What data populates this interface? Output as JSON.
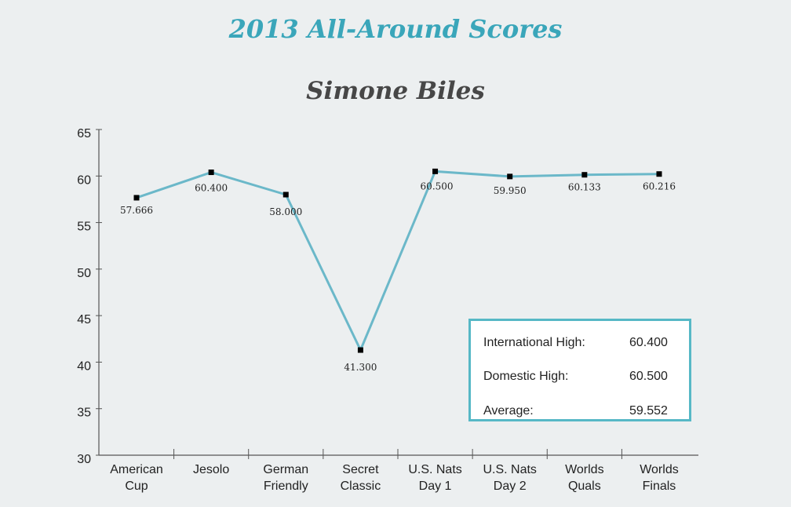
{
  "title": "2013 All-Around Scores",
  "subtitle": "Simone Biles",
  "chart_data": {
    "type": "line",
    "categories": [
      [
        "American",
        "Cup"
      ],
      [
        "Jesolo"
      ],
      [
        "German",
        "Friendly"
      ],
      [
        "Secret",
        "Classic"
      ],
      [
        "U.S. Nats",
        "Day 1"
      ],
      [
        "U.S. Nats",
        "Day 2"
      ],
      [
        "Worlds",
        "Quals"
      ],
      [
        "Worlds",
        "Finals"
      ]
    ],
    "values": [
      57.666,
      60.4,
      58.0,
      41.3,
      60.5,
      59.95,
      60.133,
      60.216
    ],
    "data_labels": [
      "57.666",
      "60.400",
      "58.000",
      "41.300",
      "60.500",
      "59.950",
      "60.133",
      "60.216"
    ],
    "yticks": [
      "30",
      "35",
      "40",
      "45",
      "50",
      "55",
      "60",
      "65"
    ],
    "ylim": [
      30,
      65
    ],
    "grid": false,
    "line_color": "#6bb8c9",
    "marker_color": "#000000"
  },
  "stats": [
    {
      "label": "International High:",
      "value": "60.400"
    },
    {
      "label": "Domestic High:",
      "value": "60.500"
    },
    {
      "label": "Average:",
      "value": "59.552"
    }
  ]
}
